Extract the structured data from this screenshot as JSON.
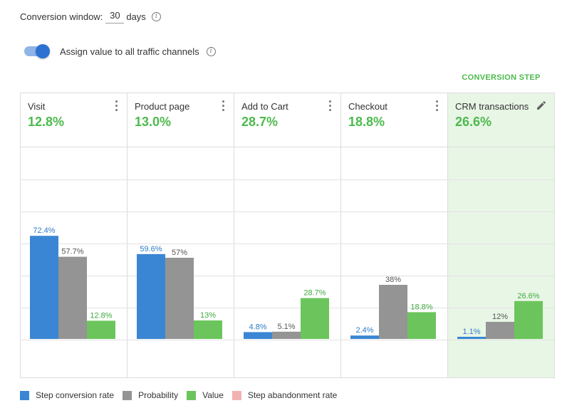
{
  "conversion_window": {
    "label": "Conversion window:",
    "value": "30",
    "unit": "days"
  },
  "assign_value": {
    "label": "Assign value to all traffic channels",
    "enabled": true
  },
  "conversion_step_label": "CONVERSION STEP",
  "colors": {
    "step_conversion_rate": "#3a86d4",
    "probability": "#949494",
    "value": "#6cc55c",
    "step_abandonment_rate": "#f2b2b2",
    "accent_green": "#4cba4c"
  },
  "chart_data": {
    "type": "bar",
    "categories": [
      "Visit",
      "Product page",
      "Add to Cart",
      "Checkout",
      "CRM transactions"
    ],
    "category_values": [
      "12.8%",
      "13.0%",
      "28.7%",
      "18.8%",
      "26.6%"
    ],
    "highlighted_category": "CRM transactions",
    "series": [
      {
        "name": "Step conversion rate",
        "values": [
          72.4,
          59.6,
          4.8,
          2.4,
          1.1
        ],
        "labels": [
          "72.4%",
          "59.6%",
          "4.8%",
          "2.4%",
          "1.1%"
        ]
      },
      {
        "name": "Probability",
        "values": [
          57.7,
          57,
          5.1,
          38,
          12
        ],
        "labels": [
          "57.7%",
          "57%",
          "5.1%",
          "38%",
          "12%"
        ]
      },
      {
        "name": "Value",
        "values": [
          12.8,
          13,
          28.7,
          18.8,
          26.6
        ],
        "labels": [
          "12.8%",
          "13%",
          "28.7%",
          "18.8%",
          "26.6%"
        ]
      }
    ],
    "legend": [
      "Step conversion rate",
      "Probability",
      "Value",
      "Step abandonment rate"
    ],
    "ylim": [
      0,
      100
    ],
    "grid": true
  }
}
